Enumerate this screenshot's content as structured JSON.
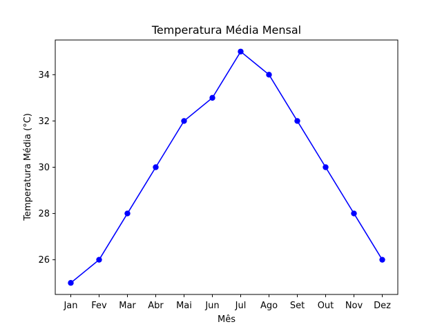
{
  "chart_data": {
    "type": "line",
    "title": "Temperatura Média Mensal",
    "xlabel": "Mês",
    "ylabel": "Temperatura Média (°C)",
    "categories": [
      "Jan",
      "Fev",
      "Mar",
      "Abr",
      "Mai",
      "Jun",
      "Jul",
      "Ago",
      "Set",
      "Out",
      "Nov",
      "Dez"
    ],
    "series": [
      {
        "values": [
          25,
          26,
          28,
          30,
          32,
          33,
          35,
          34,
          32,
          30,
          28,
          26
        ],
        "color": "#0000ff",
        "marker": "circle"
      }
    ],
    "yticks": [
      26,
      28,
      30,
      32,
      34
    ],
    "ylim": [
      24.5,
      35.5
    ],
    "grid": false,
    "legend": false
  }
}
